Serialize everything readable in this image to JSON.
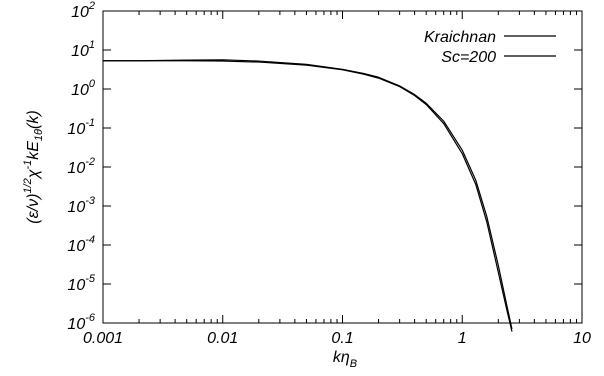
{
  "chart_data": {
    "type": "line",
    "xscale": "log",
    "yscale": "log",
    "xlim": [
      0.001,
      10
    ],
    "ylim": [
      1e-06,
      100
    ],
    "grid": false,
    "legend_position": "top-right",
    "xlabel": {
      "base": "kη",
      "sub": "B"
    },
    "ylabel": {
      "p1": "(ε/ν)",
      "sup1": "1/2",
      "p2": "χ",
      "sup2": "-1",
      "p3": "kE",
      "sub3": "1θ",
      "p4": "(k)"
    },
    "x_ticks": [
      {
        "value": 0.001,
        "label": "0.001"
      },
      {
        "value": 0.01,
        "label": "0.01"
      },
      {
        "value": 0.1,
        "label": "0.1"
      },
      {
        "value": 1,
        "label": "1"
      },
      {
        "value": 10,
        "label": "10"
      }
    ],
    "y_ticks": [
      {
        "value": 1e-06,
        "base": "10",
        "exp": "-6"
      },
      {
        "value": 1e-05,
        "base": "10",
        "exp": "-5"
      },
      {
        "value": 0.0001,
        "base": "10",
        "exp": "-4"
      },
      {
        "value": 0.001,
        "base": "10",
        "exp": "-3"
      },
      {
        "value": 0.01,
        "base": "10",
        "exp": "-2"
      },
      {
        "value": 0.1,
        "base": "10",
        "exp": "-1"
      },
      {
        "value": 1,
        "base": "10",
        "exp": "0"
      },
      {
        "value": 10,
        "base": "10",
        "exp": "1"
      },
      {
        "value": 100,
        "base": "10",
        "exp": "2"
      }
    ],
    "series": [
      {
        "name": "Kraichnan",
        "color": "#000000",
        "x": [
          0.001,
          0.002,
          0.005,
          0.01,
          0.02,
          0.05,
          0.1,
          0.15,
          0.2,
          0.3,
          0.4,
          0.5,
          0.7,
          1.0,
          1.3,
          1.6,
          2.0,
          2.3,
          2.6
        ],
        "y": [
          5.3,
          5.3,
          5.3,
          5.2,
          4.9,
          4.1,
          3.1,
          2.4,
          1.9,
          1.15,
          0.68,
          0.4,
          0.13,
          0.022,
          0.0035,
          0.0004,
          2e-05,
          3e-06,
          6e-07
        ]
      },
      {
        "name": "Sc=200",
        "color": "#000000",
        "x": [
          0.001,
          0.002,
          0.005,
          0.01,
          0.02,
          0.05,
          0.1,
          0.15,
          0.2,
          0.3,
          0.4,
          0.5,
          0.7,
          1.0,
          1.3,
          1.6,
          2.0,
          2.3,
          2.6
        ],
        "y": [
          5.3,
          5.3,
          5.5,
          5.6,
          5.2,
          4.3,
          3.2,
          2.5,
          2.0,
          1.2,
          0.72,
          0.43,
          0.15,
          0.027,
          0.0045,
          0.00055,
          3e-05,
          4e-06,
          7e-07
        ]
      }
    ]
  }
}
